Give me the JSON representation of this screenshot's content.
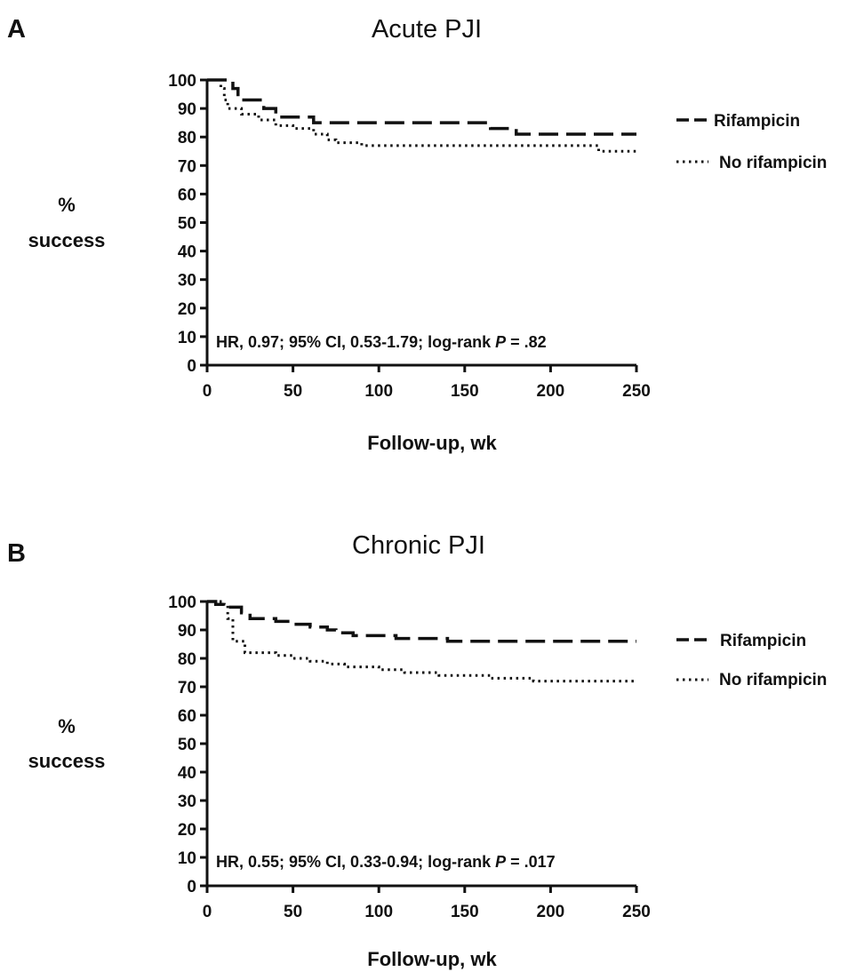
{
  "chart_data": [
    {
      "type": "line",
      "panel": "A",
      "title": "Acute PJI",
      "xlabel": "Follow-up, wk",
      "ylabel": [
        "%",
        "success"
      ],
      "xlim": [
        0,
        250
      ],
      "ylim": [
        0,
        100
      ],
      "xticks": [
        0,
        50,
        100,
        150,
        200,
        250
      ],
      "yticks": [
        0,
        10,
        20,
        30,
        40,
        50,
        60,
        70,
        80,
        90,
        100
      ],
      "annotation": {
        "pre": "HR, 0.97; 95% CI, 0.53-1.79; log-rank ",
        "p": "P",
        "post": " = .82"
      },
      "legend_position": "right",
      "series": [
        {
          "name": "Rifampicin",
          "style": "dashed",
          "color": "#111111",
          "x": [
            0,
            13,
            15,
            18,
            27,
            33,
            40,
            62,
            165,
            180,
            250
          ],
          "y": [
            100,
            100,
            97,
            93,
            93,
            90,
            87,
            85,
            83,
            81,
            81
          ]
        },
        {
          "name": "No rifampicin",
          "style": "dotted",
          "color": "#111111",
          "x": [
            0,
            8,
            10,
            12,
            20,
            30,
            40,
            50,
            62,
            70,
            75,
            80,
            90,
            228,
            250
          ],
          "y": [
            100,
            97,
            93,
            90,
            88,
            86,
            84,
            83,
            81,
            79,
            78,
            78,
            77,
            75,
            75
          ]
        }
      ]
    },
    {
      "type": "line",
      "panel": "B",
      "title": "Chronic PJI",
      "xlabel": "Follow-up, wk",
      "ylabel": [
        "%",
        "success"
      ],
      "xlim": [
        0,
        250
      ],
      "ylim": [
        0,
        100
      ],
      "xticks": [
        0,
        50,
        100,
        150,
        200,
        250
      ],
      "yticks": [
        0,
        10,
        20,
        30,
        40,
        50,
        60,
        70,
        80,
        90,
        100
      ],
      "annotation": {
        "pre": "HR, 0.55; 95% CI, 0.33-0.94; log-rank ",
        "p": "P",
        "post": " = .017"
      },
      "legend_position": "right",
      "series": [
        {
          "name": "Rifampicin",
          "style": "dashed",
          "color": "#111111",
          "x": [
            0,
            5,
            12,
            20,
            25,
            40,
            50,
            60,
            70,
            75,
            85,
            95,
            110,
            125,
            140,
            155,
            250
          ],
          "y": [
            100,
            99,
            98,
            96,
            94,
            93,
            92,
            91,
            90,
            89,
            88,
            88,
            87,
            87,
            86,
            86,
            86
          ]
        },
        {
          "name": "No rifampicin",
          "style": "dotted",
          "color": "#111111",
          "x": [
            0,
            10,
            12,
            15,
            22,
            40,
            50,
            60,
            70,
            80,
            100,
            115,
            135,
            165,
            190,
            250
          ],
          "y": [
            100,
            99,
            94,
            86,
            82,
            81,
            80,
            79,
            78,
            77,
            76,
            75,
            74,
            73,
            72,
            72
          ]
        }
      ]
    }
  ]
}
